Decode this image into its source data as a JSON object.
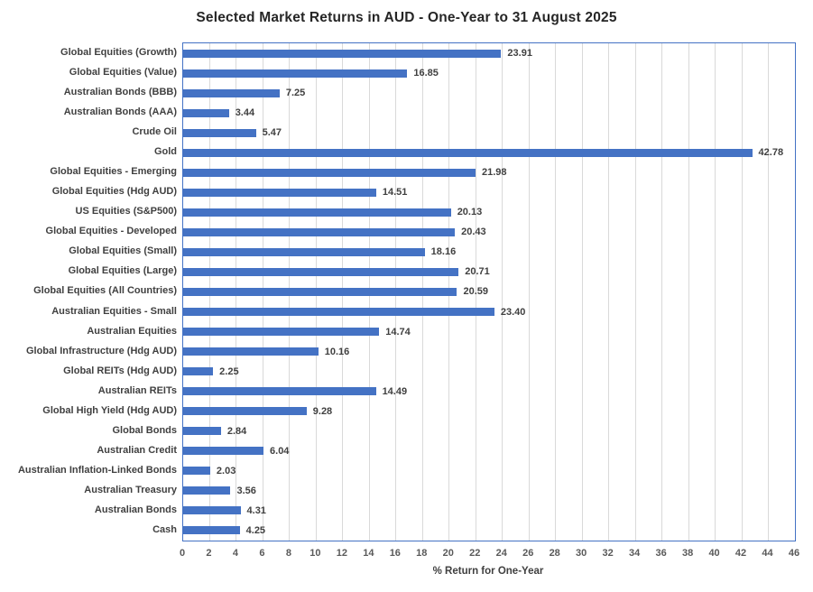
{
  "chart_data": {
    "type": "bar",
    "orientation": "horizontal",
    "title": "Selected Market Returns in AUD - One-Year to 31 August 2025",
    "xlabel": "% Return for One-Year",
    "categories": [
      "Global Equities (Growth)",
      "Global Equities (Value)",
      "Australian Bonds (BBB)",
      "Australian Bonds (AAA)",
      "Crude Oil",
      "Gold",
      "Global Equities - Emerging",
      "Global Equities (Hdg AUD)",
      "US Equities (S&P500)",
      "Global Equities - Developed",
      "Global Equities (Small)",
      "Global Equities (Large)",
      "Global Equities (All Countries)",
      "Australian Equities - Small",
      "Australian Equities",
      "Global Infrastructure (Hdg AUD)",
      "Global REITs (Hdg AUD)",
      "Australian REITs",
      "Global High Yield (Hdg AUD)",
      "Global Bonds",
      "Australian Credit",
      "Australian Inflation-Linked Bonds",
      "Australian Treasury",
      "Australian Bonds",
      "Cash"
    ],
    "values": [
      23.91,
      16.85,
      7.25,
      3.44,
      5.47,
      42.78,
      21.98,
      14.51,
      20.13,
      20.43,
      18.16,
      20.71,
      20.59,
      23.4,
      14.74,
      10.16,
      2.25,
      14.49,
      9.28,
      2.84,
      6.04,
      2.03,
      3.56,
      4.31,
      4.25
    ],
    "xlim": [
      0,
      46
    ],
    "xtick_step": 2,
    "value_decimals": 2,
    "grid": true,
    "legend": false,
    "colors": {
      "bar": "#4472C4",
      "plot_border": "#4472C4",
      "gridline": "#D9D9D9",
      "title_text": "#262626",
      "label_text": "#404040",
      "tick_text": "#595959"
    }
  }
}
